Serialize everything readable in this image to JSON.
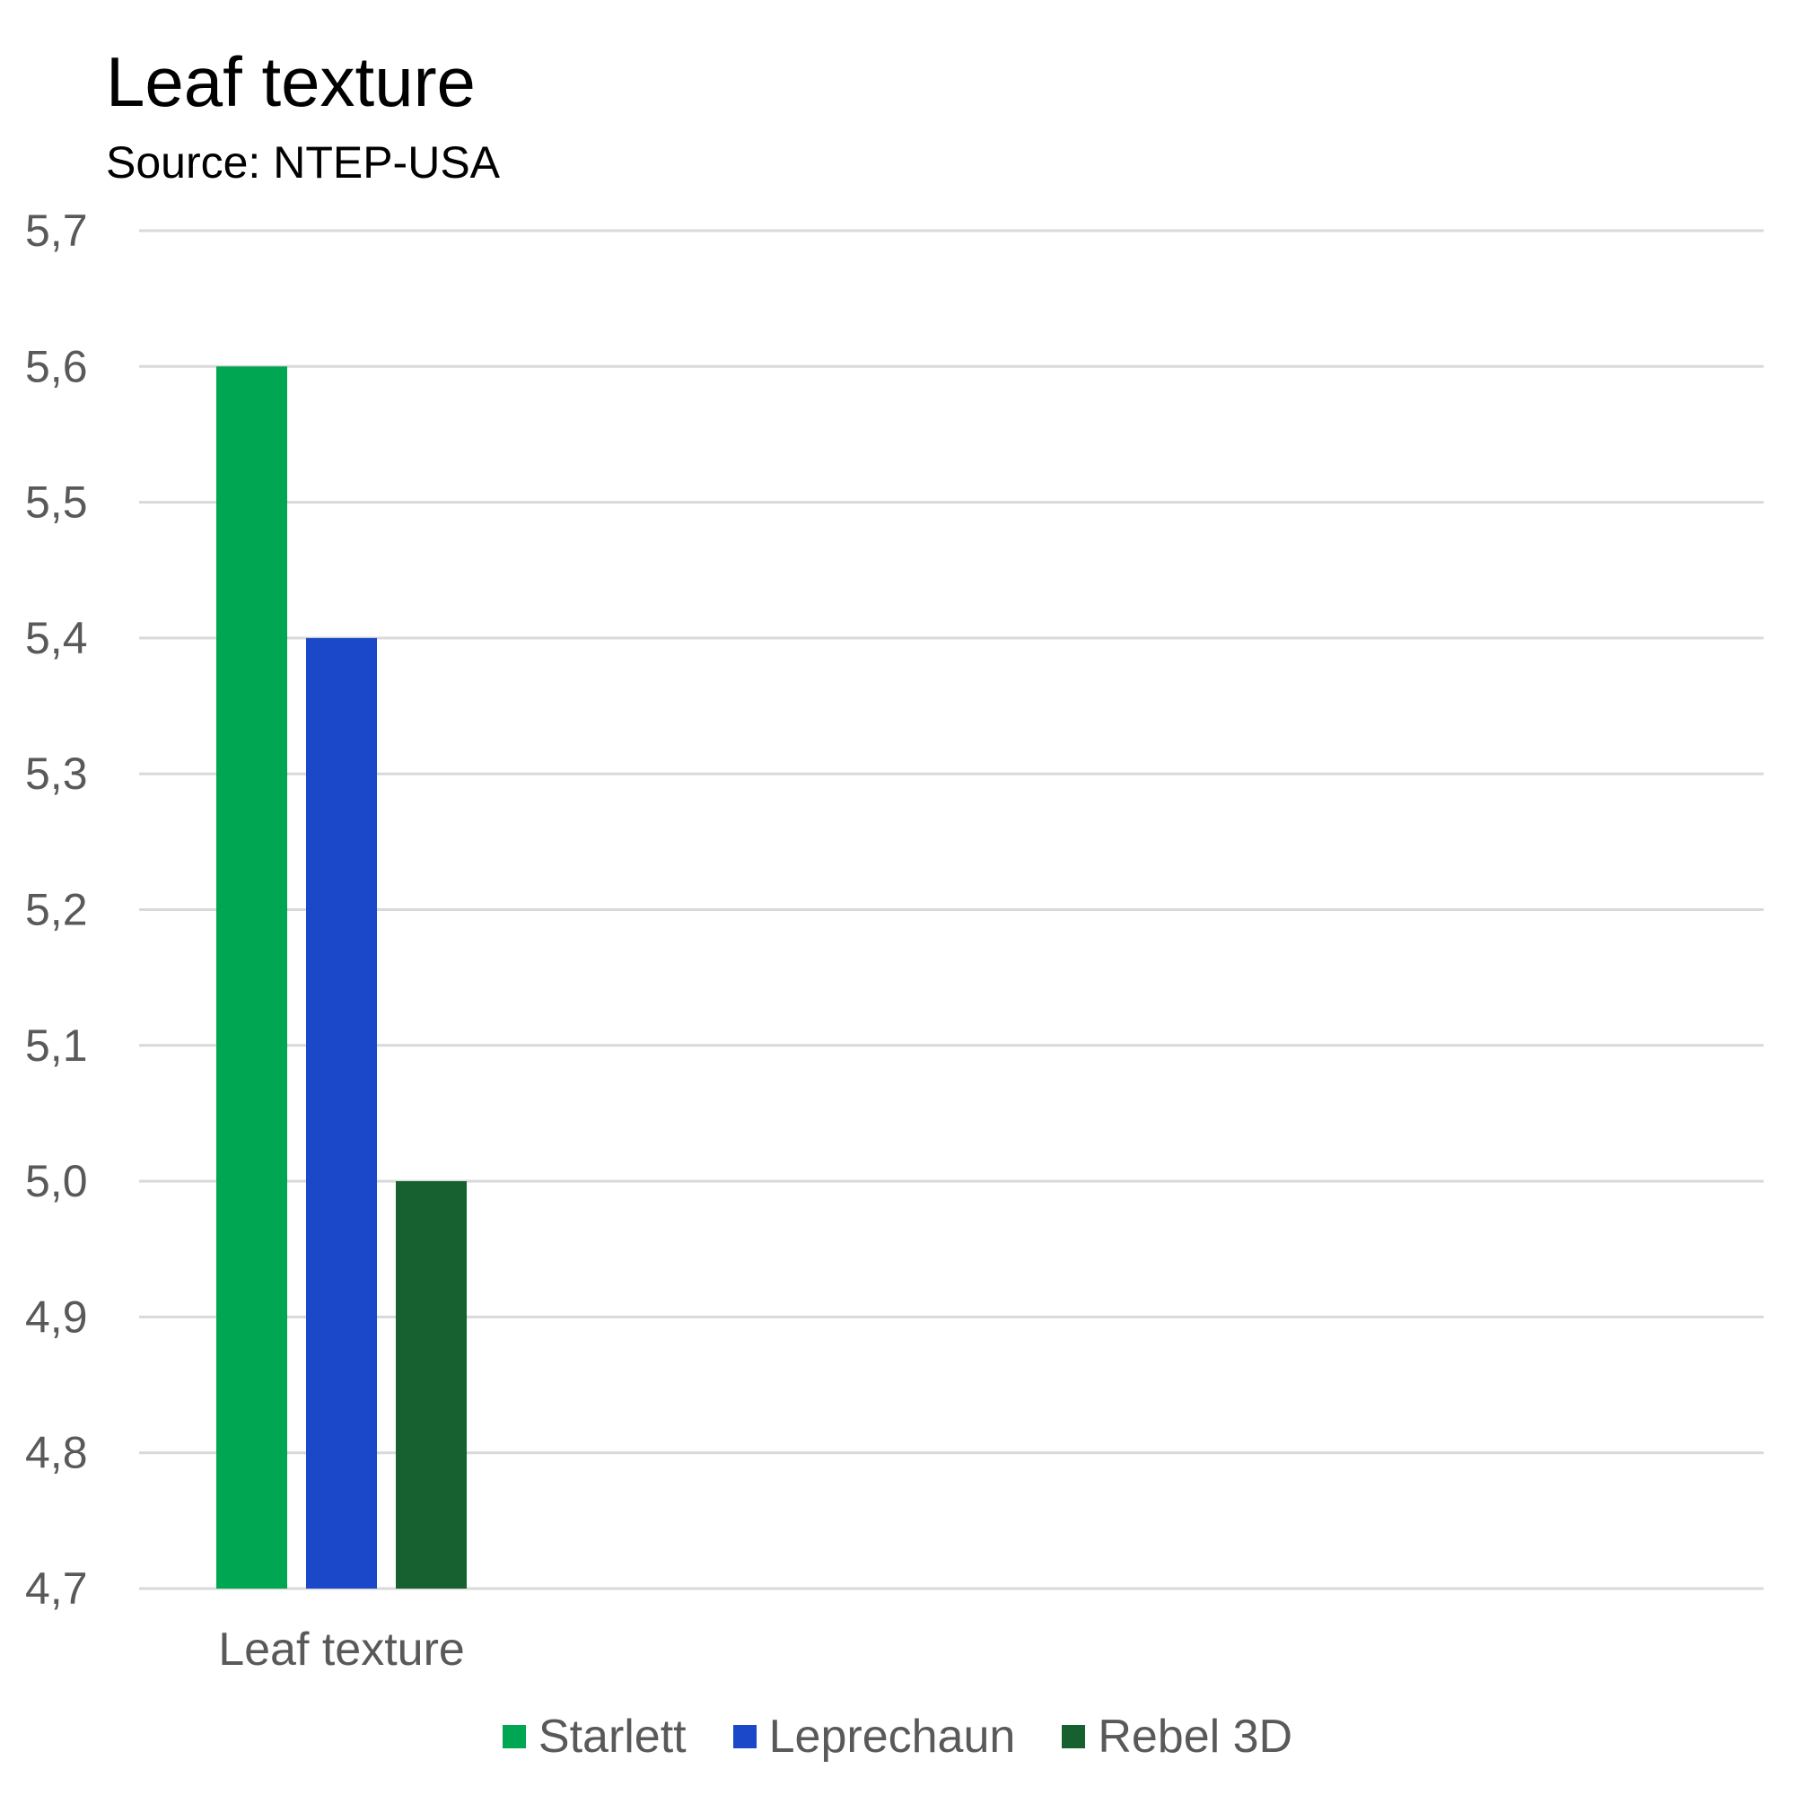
{
  "chart_data": {
    "type": "bar",
    "title": "Leaf texture",
    "subtitle": "Source: NTEP-USA",
    "categories": [
      "Leaf texture"
    ],
    "series": [
      {
        "name": "Starlett",
        "values": [
          5.6
        ],
        "color": "#00A651"
      },
      {
        "name": "Leprechaun",
        "values": [
          5.4
        ],
        "color": "#1A48C9"
      },
      {
        "name": "Rebel 3D",
        "values": [
          5.0
        ],
        "color": "#17602F"
      }
    ],
    "ylim": [
      4.7,
      5.7
    ],
    "yticks": [
      "4,7",
      "4,8",
      "4,9",
      "5,0",
      "5,1",
      "5,2",
      "5,3",
      "5,4",
      "5,5",
      "5,6",
      "5,7"
    ],
    "grid": true,
    "legend_position": "bottom"
  }
}
